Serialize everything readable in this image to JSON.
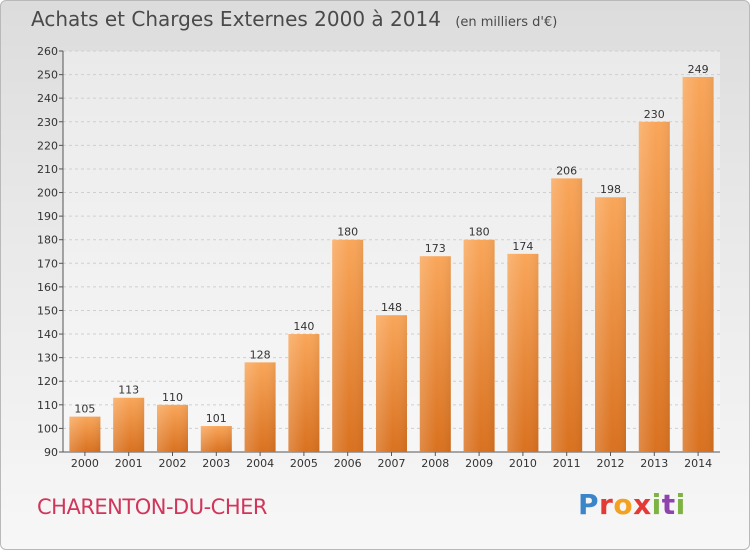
{
  "header": {
    "title": "Achats et Charges Externes 2000 à 2014",
    "unit_label": "(en milliers d'€)"
  },
  "footer": {
    "place": "CHARENTON-DU-CHER",
    "logo_text": "Proxiti"
  },
  "colors": {
    "bar_light": "#f9a65a",
    "bar_dark": "#d9711f",
    "grid": "#cfcfcf",
    "place_text": "#d1355a"
  },
  "chart_data": {
    "type": "bar",
    "title": "Achats et Charges Externes 2000 à 2014",
    "subtitle": "(en milliers d'€)",
    "categories": [
      "2000",
      "2001",
      "2002",
      "2003",
      "2004",
      "2005",
      "2006",
      "2007",
      "2008",
      "2009",
      "2010",
      "2011",
      "2012",
      "2013",
      "2014"
    ],
    "values": [
      105,
      113,
      110,
      101,
      128,
      140,
      180,
      148,
      173,
      180,
      174,
      206,
      198,
      230,
      249
    ],
    "ylim": [
      90,
      260
    ],
    "yticks": [
      90,
      100,
      110,
      120,
      130,
      140,
      150,
      160,
      170,
      180,
      190,
      200,
      210,
      220,
      230,
      240,
      250,
      260
    ],
    "grid": true,
    "data_labels": true
  }
}
